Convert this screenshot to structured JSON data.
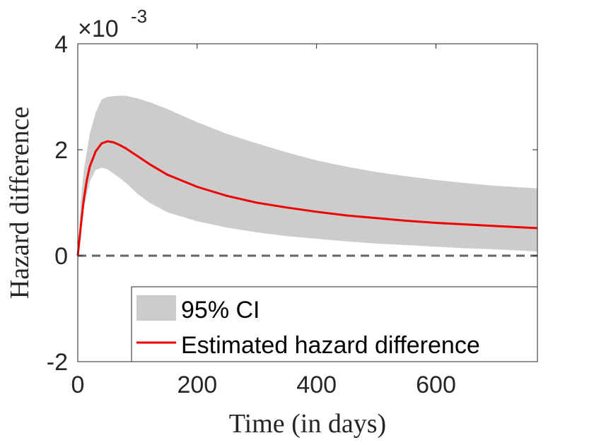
{
  "chart_data": {
    "type": "line",
    "xlabel": "Time (in days)",
    "ylabel": "Hazard difference",
    "xlim": [
      0,
      770
    ],
    "ylim": [
      -2,
      4
    ],
    "y_multiplier_label": "×10",
    "y_multiplier_exponent": "-3",
    "xticks": [
      0,
      200,
      400,
      600
    ],
    "xtick_labels": [
      "0",
      "200",
      "400",
      "600"
    ],
    "yticks": [
      -2,
      0,
      2,
      4
    ],
    "ytick_labels": [
      "-2",
      "0",
      "2",
      "4"
    ],
    "grid": false,
    "legend_position": "bottom-right",
    "colors": {
      "band": "#cccccc",
      "line": "#ee0000",
      "reference": "#666666",
      "axes": "#262626"
    },
    "reference_line": {
      "y": 0,
      "style": "dashed"
    },
    "series": [
      {
        "name": "95% CI",
        "kind": "band",
        "x": [
          0,
          5,
          10,
          20,
          30,
          40,
          50,
          60,
          70,
          80,
          100,
          120,
          150,
          200,
          250,
          300,
          350,
          400,
          450,
          500,
          550,
          600,
          650,
          700,
          770
        ],
        "lower": [
          0,
          0.5,
          0.9,
          1.4,
          1.62,
          1.66,
          1.63,
          1.55,
          1.47,
          1.38,
          1.17,
          1.0,
          0.82,
          0.65,
          0.53,
          0.44,
          0.37,
          0.32,
          0.27,
          0.23,
          0.2,
          0.17,
          0.14,
          0.12,
          0.08
        ],
        "upper": [
          0,
          1.0,
          1.6,
          2.3,
          2.7,
          2.95,
          3.0,
          3.01,
          3.02,
          3.02,
          2.97,
          2.9,
          2.77,
          2.52,
          2.3,
          2.12,
          1.95,
          1.8,
          1.68,
          1.58,
          1.5,
          1.43,
          1.37,
          1.32,
          1.27
        ]
      },
      {
        "name": "Estimated hazard difference",
        "kind": "line",
        "x": [
          0,
          5,
          10,
          15,
          20,
          30,
          40,
          50,
          60,
          70,
          80,
          100,
          120,
          150,
          200,
          250,
          300,
          350,
          400,
          450,
          500,
          550,
          600,
          650,
          700,
          770
        ],
        "y": [
          0,
          0.55,
          1.05,
          1.42,
          1.68,
          1.97,
          2.12,
          2.16,
          2.14,
          2.09,
          2.03,
          1.88,
          1.73,
          1.53,
          1.3,
          1.13,
          1.0,
          0.91,
          0.83,
          0.76,
          0.71,
          0.66,
          0.62,
          0.59,
          0.56,
          0.52
        ]
      }
    ]
  }
}
